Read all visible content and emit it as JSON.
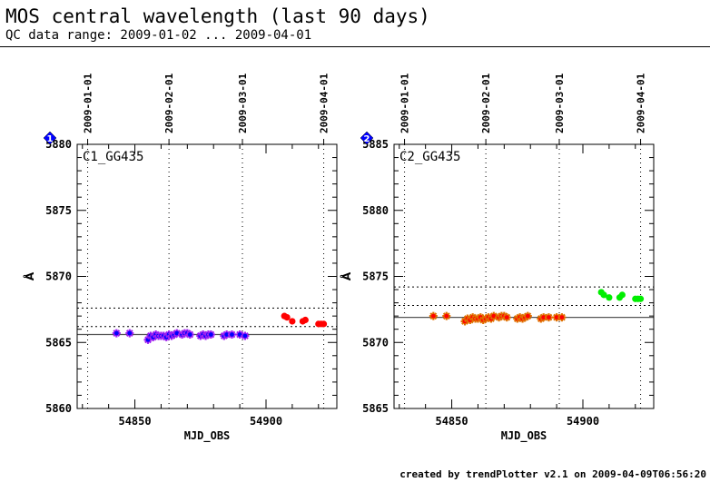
{
  "header": {
    "title": "MOS central wavelength (last 90 days)",
    "subtitle": "QC data range: 2009-01-02 ... 2009-04-01"
  },
  "footer": {
    "credit": "created by trendPlotter v2.1 on 2009-04-09T06:56:20"
  },
  "colors": {
    "blue_marker": "#0000ff",
    "purple_marker": "#a020f0",
    "red_marker": "#ff0000",
    "orange_marker": "#e07000",
    "green_marker": "#00ee00",
    "badge_fill": "#0000ff"
  },
  "chart_data": [
    {
      "type": "scatter",
      "panel_label": "C1_GG435",
      "badge": "1",
      "xlabel": "MJD_OBS",
      "ylabel": "Å",
      "xlim": [
        54828,
        54927
      ],
      "ylim": [
        5860,
        5880
      ],
      "x_ticks": [
        54850,
        54900
      ],
      "y_ticks": [
        5860,
        5865,
        5870,
        5875,
        5880
      ],
      "date_ticks": [
        {
          "label": "2009-01-01",
          "mjd": 54832
        },
        {
          "label": "2009-02-01",
          "mjd": 54863
        },
        {
          "label": "2009-03-01",
          "mjd": 54891
        },
        {
          "label": "2009-04-01",
          "mjd": 54922
        }
      ],
      "reference_line": 5865.6,
      "threshold_lines": [
        5866.2,
        5867.6
      ],
      "grid": false,
      "series": [
        {
          "marker": "star",
          "color": "#0000ff",
          "edge_color": "#a020f0",
          "x": [
            54843,
            54848,
            54855,
            54856,
            54857,
            54858,
            54859,
            54860,
            54861,
            54862,
            54863,
            54864,
            54865,
            54866,
            54868,
            54869,
            54870,
            54871,
            54875,
            54876,
            54877,
            54878,
            54879,
            54884,
            54885,
            54887,
            54890,
            54892
          ],
          "y": [
            5865.7,
            5865.7,
            5865.2,
            5865.5,
            5865.4,
            5865.6,
            5865.5,
            5865.5,
            5865.5,
            5865.4,
            5865.6,
            5865.5,
            5865.6,
            5865.7,
            5865.6,
            5865.7,
            5865.7,
            5865.6,
            5865.5,
            5865.6,
            5865.5,
            5865.6,
            5865.6,
            5865.5,
            5865.6,
            5865.6,
            5865.6,
            5865.5
          ]
        },
        {
          "marker": "circle",
          "color": "#ff0000",
          "x": [
            54907,
            54908,
            54910,
            54914,
            54915,
            54920,
            54921,
            54922
          ],
          "y": [
            5867.0,
            5866.9,
            5866.6,
            5866.6,
            5866.7,
            5866.4,
            5866.4,
            5866.4
          ]
        }
      ]
    },
    {
      "type": "scatter",
      "panel_label": "C2_GG435",
      "badge": "2",
      "xlabel": "MJD_OBS",
      "ylabel": "Å",
      "xlim": [
        54828,
        54927
      ],
      "ylim": [
        5865,
        5885
      ],
      "x_ticks": [
        54850,
        54900
      ],
      "y_ticks": [
        5865,
        5870,
        5875,
        5880,
        5885
      ],
      "date_ticks": [
        {
          "label": "2009-01-01",
          "mjd": 54832
        },
        {
          "label": "2009-02-01",
          "mjd": 54863
        },
        {
          "label": "2009-03-01",
          "mjd": 54891
        },
        {
          "label": "2009-04-01",
          "mjd": 54922
        }
      ],
      "reference_line": 5871.9,
      "threshold_lines": [
        5872.8,
        5874.2
      ],
      "grid": false,
      "series": [
        {
          "marker": "star",
          "color": "#ff0000",
          "edge_color": "#e07000",
          "x": [
            54843,
            54848,
            54855,
            54856,
            54857,
            54858,
            54859,
            54860,
            54861,
            54862,
            54863,
            54864,
            54865,
            54866,
            54868,
            54869,
            54870,
            54871,
            54875,
            54876,
            54877,
            54878,
            54879,
            54884,
            54885,
            54887,
            54890,
            54892
          ],
          "y": [
            5872.0,
            5872.0,
            5871.6,
            5871.8,
            5871.7,
            5871.9,
            5871.8,
            5871.8,
            5871.9,
            5871.7,
            5871.8,
            5871.9,
            5871.8,
            5872.0,
            5871.9,
            5872.0,
            5872.0,
            5871.9,
            5871.8,
            5871.9,
            5871.8,
            5871.9,
            5872.0,
            5871.8,
            5871.9,
            5871.9,
            5871.9,
            5871.9
          ]
        },
        {
          "marker": "circle",
          "color": "#00ee00",
          "x": [
            54907,
            54908,
            54910,
            54914,
            54915,
            54920,
            54921,
            54922
          ],
          "y": [
            5873.8,
            5873.6,
            5873.4,
            5873.4,
            5873.6,
            5873.3,
            5873.3,
            5873.3
          ]
        }
      ]
    }
  ]
}
